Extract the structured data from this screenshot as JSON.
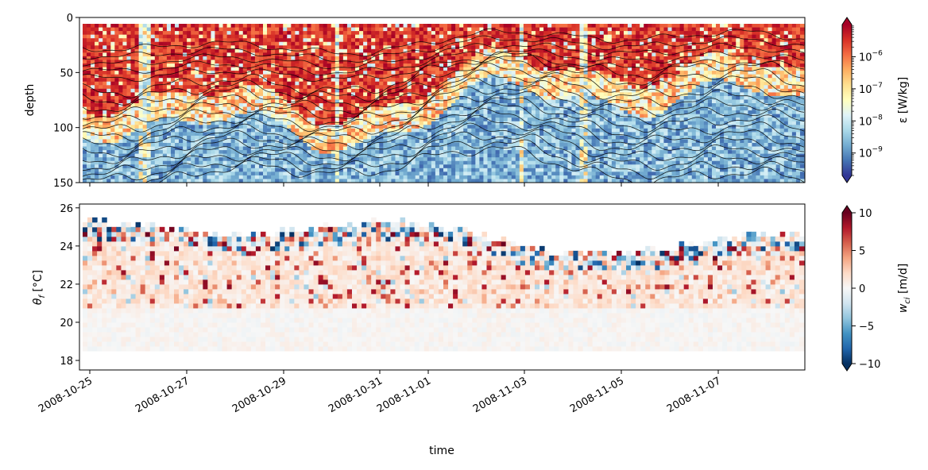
{
  "chart_data": [
    {
      "type": "heatmap",
      "panel": "top",
      "ylabel": "depth",
      "ylim": [
        150,
        0
      ],
      "y_ticks": [
        "0",
        "50",
        "100",
        "150"
      ],
      "y_tick_values": [
        0,
        50,
        100,
        150
      ],
      "x_ticks_labeled": false,
      "colormap": "RdYlBu_r",
      "color_scale": "log",
      "colorbar": {
        "label_html": "ε [W/kg]",
        "label": "ε [W/kg]",
        "range": [
          2e-10,
          1e-05
        ],
        "ticks": [
          {
            "mantissa": "10",
            "exp": "−6",
            "value": 1e-06
          },
          {
            "mantissa": "10",
            "exp": "−7",
            "value": 1e-07
          },
          {
            "mantissa": "10",
            "exp": "−8",
            "value": 1e-08
          },
          {
            "mantissa": "10",
            "exp": "−9",
            "value": 1e-09
          }
        ],
        "extend": "both"
      },
      "contours": {
        "color": "#000000",
        "count": 20
      }
    },
    {
      "type": "heatmap",
      "panel": "bottom",
      "ylabel": "θ",
      "ylabel_sub": "f",
      "ylabel_unit": " [°C]",
      "ylim": [
        17.5,
        26.2
      ],
      "y_ticks": [
        "18",
        "20",
        "22",
        "24",
        "26"
      ],
      "y_tick_values": [
        18,
        20,
        22,
        24,
        26
      ],
      "xlabel": "time",
      "x_ticks": [
        "2008-10-25",
        "2008-10-27",
        "2008-10-29",
        "2008-10-31",
        "2008-11-01",
        "2008-11-03",
        "2008-11-05",
        "2008-11-07"
      ],
      "colormap": "RdBu_r",
      "colorbar": {
        "label": "w",
        "label_sub": "ci",
        "label_unit": " [m/d]",
        "range": [
          -10,
          10
        ],
        "ticks": [
          "10",
          "5",
          "0",
          "−5",
          "−10"
        ],
        "tick_values": [
          10,
          5,
          0,
          -5,
          -10
        ],
        "extend": "both"
      }
    }
  ]
}
